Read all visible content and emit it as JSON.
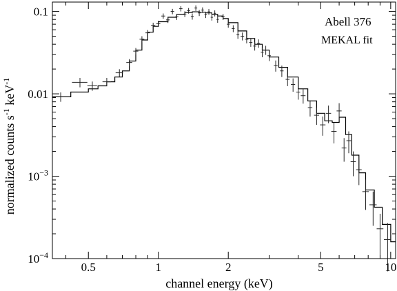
{
  "chart_data": {
    "type": "line",
    "xscale": "log",
    "yscale": "log",
    "xlim": [
      0.35,
      10.5
    ],
    "ylim": [
      0.0001,
      0.13
    ],
    "xlabel": "channel energy (keV)",
    "ylabel": [
      "normalized counts s",
      "-1",
      " keV",
      "-1"
    ],
    "annotations": [
      "Abell 376",
      "MEKAL fit"
    ],
    "grid": false,
    "x_tick_labels": [
      {
        "value": 0.5,
        "label": "0.5"
      },
      {
        "value": 1,
        "label": "1"
      },
      {
        "value": 2,
        "label": "2"
      },
      {
        "value": 5,
        "label": "5"
      },
      {
        "value": 10,
        "label": "10"
      }
    ],
    "y_tick_labels": [
      {
        "value": 0.1,
        "label": "0.1"
      },
      {
        "value": 0.01,
        "label": "0.01"
      },
      {
        "value": 0.001,
        "label": "10",
        "exp": "−3"
      },
      {
        "value": 0.0001,
        "label": "10",
        "exp": "−4"
      }
    ],
    "series": [
      {
        "kind": "model_step",
        "x": [
          0.35,
          0.42,
          0.5,
          0.55,
          0.6,
          0.65,
          0.7,
          0.75,
          0.8,
          0.85,
          0.9,
          0.95,
          1.0,
          1.1,
          1.2,
          1.3,
          1.4,
          1.5,
          1.6,
          1.7,
          1.8,
          1.9,
          2.0,
          2.2,
          2.4,
          2.6,
          2.8,
          3.0,
          3.3,
          3.6,
          4.0,
          4.4,
          4.8,
          5.2,
          5.6,
          6.0,
          6.4,
          6.8,
          7.3,
          7.8,
          8.5,
          9.2,
          10.0,
          10.5
        ],
        "y": [
          0.0092,
          0.0105,
          0.0115,
          0.0125,
          0.014,
          0.016,
          0.019,
          0.025,
          0.034,
          0.045,
          0.056,
          0.066,
          0.075,
          0.085,
          0.092,
          0.097,
          0.099,
          0.098,
          0.096,
          0.092,
          0.088,
          0.082,
          0.073,
          0.058,
          0.047,
          0.04,
          0.034,
          0.028,
          0.021,
          0.016,
          0.0115,
          0.0082,
          0.0058,
          0.0047,
          0.0045,
          0.0052,
          0.0032,
          0.0018,
          0.0011,
          0.00068,
          0.00042,
          0.00026,
          0.00016,
          0.00013
        ]
      },
      {
        "kind": "data_with_errors",
        "x": [
          0.38,
          0.46,
          0.52,
          0.6,
          0.68,
          0.75,
          0.8,
          0.85,
          0.9,
          0.95,
          1.0,
          1.05,
          1.1,
          1.15,
          1.2,
          1.25,
          1.3,
          1.35,
          1.4,
          1.45,
          1.5,
          1.55,
          1.6,
          1.65,
          1.7,
          1.75,
          1.8,
          1.9,
          2.0,
          2.1,
          2.2,
          2.3,
          2.4,
          2.5,
          2.6,
          2.7,
          2.8,
          2.9,
          3.0,
          3.2,
          3.4,
          3.6,
          3.8,
          4.0,
          4.2,
          4.5,
          4.8,
          5.1,
          5.4,
          5.7,
          6.0,
          6.3,
          6.6,
          6.9,
          7.3,
          7.8,
          8.4,
          9.0,
          9.7
        ],
        "y": [
          0.0092,
          0.0138,
          0.0125,
          0.014,
          0.018,
          0.024,
          0.033,
          0.046,
          0.055,
          0.068,
          0.071,
          0.088,
          0.079,
          0.1,
          0.086,
          0.108,
          0.093,
          0.102,
          0.087,
          0.11,
          0.096,
          0.104,
          0.091,
          0.099,
          0.085,
          0.095,
          0.08,
          0.086,
          0.07,
          0.062,
          0.052,
          0.05,
          0.046,
          0.042,
          0.038,
          0.041,
          0.032,
          0.034,
          0.029,
          0.022,
          0.019,
          0.015,
          0.013,
          0.0105,
          0.0095,
          0.0068,
          0.0055,
          0.0042,
          0.0058,
          0.0035,
          0.0062,
          0.0022,
          0.0027,
          0.0015,
          0.0012,
          0.00065,
          0.00045,
          0.00023,
          0.00017
        ],
        "yerr": [
          0.0012,
          0.0018,
          0.0016,
          0.0016,
          0.0019,
          0.0024,
          0.003,
          0.004,
          0.0045,
          0.005,
          0.006,
          0.0065,
          0.0065,
          0.0075,
          0.007,
          0.008,
          0.0075,
          0.008,
          0.0075,
          0.0085,
          0.008,
          0.008,
          0.0078,
          0.008,
          0.0075,
          0.008,
          0.0072,
          0.0072,
          0.0065,
          0.006,
          0.0055,
          0.0055,
          0.005,
          0.0048,
          0.0045,
          0.0048,
          0.0042,
          0.0043,
          0.004,
          0.0034,
          0.003,
          0.0026,
          0.0024,
          0.002,
          0.0019,
          0.0015,
          0.0013,
          0.0011,
          0.0014,
          0.001,
          0.0015,
          0.0007,
          0.0008,
          0.0005,
          0.00042,
          0.00026,
          0.0002,
          0.00012,
          0.0001
        ],
        "xerr": [
          0.035,
          0.035,
          0.025,
          0.025,
          0.025,
          0.022,
          0.02,
          0.02,
          0.02,
          0.02,
          0.02,
          0.02,
          0.02,
          0.02,
          0.02,
          0.02,
          0.02,
          0.02,
          0.02,
          0.02,
          0.02,
          0.02,
          0.02,
          0.02,
          0.02,
          0.02,
          0.02,
          0.03,
          0.03,
          0.03,
          0.03,
          0.04,
          0.04,
          0.04,
          0.04,
          0.04,
          0.04,
          0.04,
          0.05,
          0.06,
          0.06,
          0.07,
          0.08,
          0.08,
          0.1,
          0.1,
          0.12,
          0.14,
          0.14,
          0.15,
          0.15,
          0.15,
          0.15,
          0.18,
          0.2,
          0.25,
          0.3,
          0.3,
          0.35
        ]
      }
    ]
  }
}
